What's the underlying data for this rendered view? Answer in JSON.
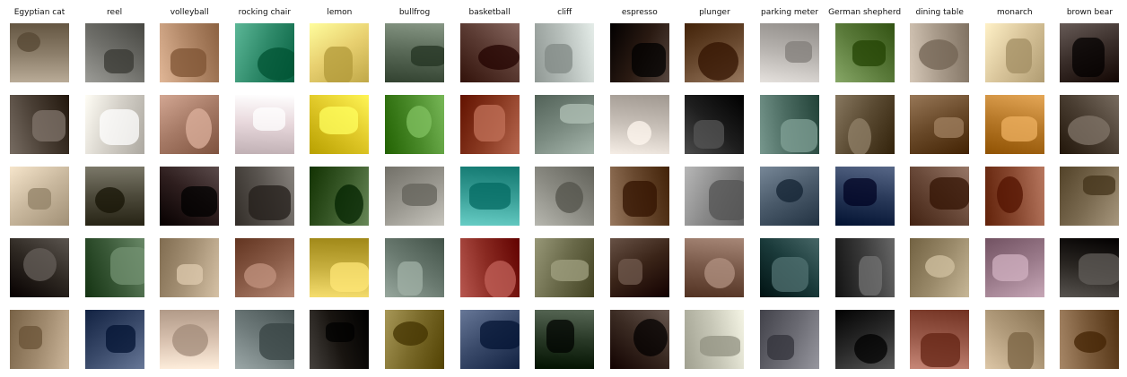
{
  "columns": [
    {
      "label": "Egyptian cat",
      "colors": [
        "#8c7e6a",
        "#4a3f35",
        "#c9b89e",
        "#2e2822",
        "#a08a6e"
      ]
    },
    {
      "label": "reel",
      "colors": [
        "#6f6f6a",
        "#d4d0c8",
        "#4e4b3c",
        "#3c5b3a",
        "#3a4a6a"
      ]
    },
    {
      "label": "volleyball",
      "colors": [
        "#b48a6a",
        "#a67a66",
        "#2e1e1e",
        "#a89478",
        "#d9c2b0"
      ]
    },
    {
      "label": "rocking chair",
      "colors": [
        "#2f8a6a",
        "#e8d8dc",
        "#5a5550",
        "#8a5c48",
        "#6e7a7a"
      ]
    },
    {
      "label": "lemon",
      "colors": [
        "#e8d070",
        "#e0c828",
        "#3a5a2a",
        "#c8b040",
        "#181410"
      ]
    },
    {
      "label": "bullfrog",
      "colors": [
        "#5a6a58",
        "#4a8a2a",
        "#9a9890",
        "#6a7a70",
        "#7a6a2a"
      ]
    },
    {
      "label": "basketball",
      "colors": [
        "#5a3a32",
        "#8a3a22",
        "#3aa098",
        "#8a2a22",
        "#3a4a6a"
      ]
    },
    {
      "label": "cliff",
      "colors": [
        "#b8c0bc",
        "#7a8a80",
        "#8a8a82",
        "#6a6a4a",
        "#2a3a28"
      ]
    },
    {
      "label": "espresso",
      "colors": [
        "#2a1a12",
        "#c8c0b8",
        "#6a4a30",
        "#3a2418",
        "#3a2a22"
      ]
    },
    {
      "label": "plunger",
      "colors": [
        "#6a4a30",
        "#1e1e1e",
        "#8a8a8a",
        "#7a5a4a",
        "#c8c8b8"
      ]
    },
    {
      "label": "parking meter",
      "colors": [
        "#b8b4b0",
        "#4a6a60",
        "#4a5a6a",
        "#1a3a3a",
        "#6a6a72"
      ]
    },
    {
      "label": "German shepherd",
      "colors": [
        "#5a7a3a",
        "#5a4a32",
        "#2a3a5a",
        "#3a3a3a",
        "#2a2a2a"
      ]
    },
    {
      "label": "dining table",
      "colors": [
        "#a89a8a",
        "#6a4a2a",
        "#6a4a3a",
        "#9a8a6a",
        "#9a5a4a"
      ]
    },
    {
      "label": "monarch",
      "colors": [
        "#d8c49a",
        "#b87a2a",
        "#8a4a32",
        "#9a7a8a",
        "#b09a7a"
      ]
    },
    {
      "label": "brown bear",
      "colors": [
        "#3a2e2a",
        "#4a3e32",
        "#7a6a50",
        "#2a2622",
        "#7a5a3a"
      ]
    }
  ]
}
